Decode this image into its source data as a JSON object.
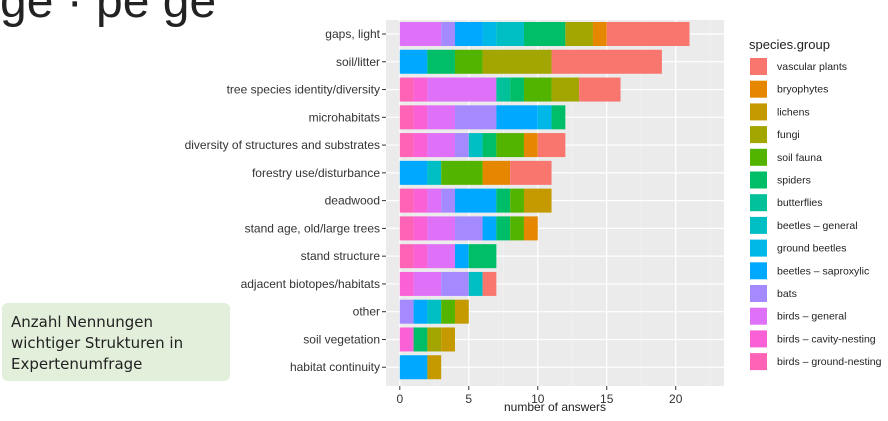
{
  "page": {
    "title_fragment": "ge  ·  pe  ge",
    "callout_text": "Anzahl Nennungen\nwichtiger Strukturen in\nExpertenumfrage"
  },
  "chart_data": {
    "type": "bar",
    "orientation": "horizontal",
    "stacked": true,
    "xlabel": "number of answers",
    "ylabel": "",
    "xlim": [
      -1,
      23.5
    ],
    "x_ticks": [
      0,
      5,
      10,
      15,
      20
    ],
    "legend_title": "species.group",
    "legend_position": "right",
    "grid": true,
    "background": "#ebebeb",
    "categories": [
      "gaps, light",
      "soil/litter",
      "tree species identity/diversity",
      "microhabitats",
      "diversity of structures and substrates",
      "forestry use/disturbance",
      "deadwood",
      "stand age, old/large trees",
      "stand structure",
      "adjacent biotopes/habitats",
      "other",
      "soil vegetation",
      "habitat continuity"
    ],
    "series": [
      {
        "name": "birds – ground-nesting",
        "color": "#FF63B6",
        "values": [
          0,
          0,
          1,
          1,
          1,
          0,
          1,
          1,
          1,
          0,
          0,
          0,
          0
        ]
      },
      {
        "name": "birds – cavity-nesting",
        "color": "#FB61D7",
        "values": [
          0,
          0,
          1,
          1,
          1,
          0,
          1,
          1,
          1,
          1,
          0,
          1,
          0
        ]
      },
      {
        "name": "birds – general",
        "color": "#DF70F8",
        "values": [
          3,
          0,
          5,
          2,
          2,
          0,
          1,
          2,
          2,
          2,
          0,
          0,
          0
        ]
      },
      {
        "name": "bats",
        "color": "#A58AFF",
        "values": [
          1,
          0,
          0,
          3,
          1,
          0,
          1,
          2,
          0,
          2,
          1,
          0,
          0
        ]
      },
      {
        "name": "beetles – saproxylic",
        "color": "#00A9FF",
        "values": [
          2,
          2,
          0,
          3,
          0,
          2,
          3,
          1,
          1,
          0,
          1,
          0,
          2
        ]
      },
      {
        "name": "ground beetles",
        "color": "#00B8E7",
        "values": [
          1,
          0,
          0,
          1,
          0,
          0,
          0,
          0,
          0,
          0,
          0,
          0,
          0
        ]
      },
      {
        "name": "beetles – general",
        "color": "#00BFC4",
        "values": [
          2,
          0,
          0,
          0,
          1,
          1,
          0,
          0,
          0,
          1,
          1,
          0,
          0
        ]
      },
      {
        "name": "butterflies",
        "color": "#00C19A",
        "values": [
          0,
          0,
          1,
          0,
          0,
          0,
          0,
          0,
          0,
          0,
          0,
          0,
          0
        ]
      },
      {
        "name": "spiders",
        "color": "#00BE67",
        "values": [
          3,
          2,
          1,
          1,
          1,
          0,
          1,
          1,
          2,
          0,
          0,
          1,
          0
        ]
      },
      {
        "name": "soil fauna",
        "color": "#53B400",
        "values": [
          0,
          2,
          2,
          0,
          2,
          3,
          1,
          1,
          0,
          0,
          1,
          0,
          0
        ]
      },
      {
        "name": "fungi",
        "color": "#A3A500",
        "values": [
          2,
          5,
          2,
          0,
          0,
          0,
          0,
          0,
          0,
          0,
          0,
          1,
          0
        ]
      },
      {
        "name": "lichens",
        "color": "#C49A00",
        "values": [
          0,
          0,
          0,
          0,
          0,
          0,
          2,
          0,
          0,
          0,
          1,
          1,
          1
        ]
      },
      {
        "name": "bryophytes",
        "color": "#E58700",
        "values": [
          1,
          0,
          0,
          0,
          1,
          2,
          0,
          1,
          0,
          0,
          0,
          0,
          0
        ]
      },
      {
        "name": "vascular plants",
        "color": "#F8766D",
        "values": [
          6,
          8,
          3,
          0,
          2,
          3,
          0,
          0,
          0,
          1,
          0,
          0,
          0
        ]
      }
    ],
    "legend_order": [
      "vascular plants",
      "bryophytes",
      "lichens",
      "fungi",
      "soil fauna",
      "spiders",
      "butterflies",
      "beetles – general",
      "ground beetles",
      "beetles – saproxylic",
      "bats",
      "birds – general",
      "birds – cavity-nesting",
      "birds – ground-nesting"
    ]
  }
}
